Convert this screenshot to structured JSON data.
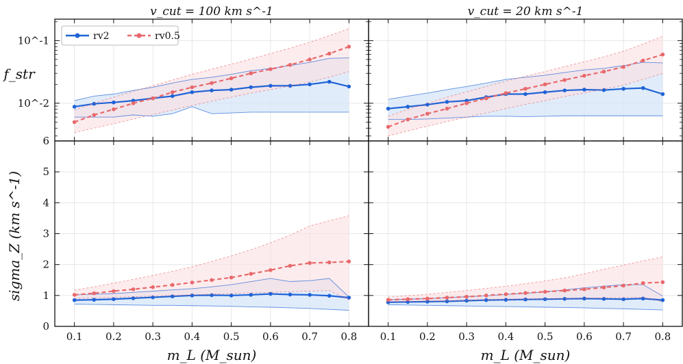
{
  "figure": {
    "panel_titles": [
      "v_cut = 100 km s^-1",
      "v_cut = 20 km s^-1"
    ],
    "xlabel": "m_L (M_sun)",
    "ylabel_top": "f_str",
    "ylabel_bottom": "sigma_Z (km s^-1)"
  },
  "colors": {
    "rv2": "#1f63d6",
    "rv0.5": "#e8686b",
    "rv2_band": "#d6e6f8",
    "rv05_band": "#fbe0e1"
  },
  "chart_data": [
    {
      "type": "line",
      "title": "v_cut = 100 km s^-1",
      "ylabel": "f_str",
      "yscale": "log",
      "ylim": [
        0.0025,
        0.22
      ],
      "xlim": [
        0.05,
        0.85
      ],
      "x": [
        0.1,
        0.15,
        0.2,
        0.25,
        0.3,
        0.35,
        0.4,
        0.45,
        0.5,
        0.55,
        0.6,
        0.65,
        0.7,
        0.75,
        0.8
      ],
      "series": [
        {
          "name": "rv2",
          "median": [
            0.0088,
            0.0098,
            0.0103,
            0.011,
            0.012,
            0.013,
            0.015,
            0.016,
            0.0165,
            0.018,
            0.019,
            0.019,
            0.02,
            0.022,
            0.0185
          ],
          "p16": [
            0.006,
            0.006,
            0.006,
            0.0065,
            0.0062,
            0.0068,
            0.0088,
            0.0068,
            0.007,
            0.0072,
            0.0072,
            0.0072,
            0.0072,
            0.0072,
            0.0072
          ],
          "p84": [
            0.011,
            0.013,
            0.014,
            0.016,
            0.018,
            0.021,
            0.024,
            0.026,
            0.029,
            0.033,
            0.036,
            0.04,
            0.045,
            0.052,
            0.053
          ]
        },
        {
          "name": "rv0.5",
          "median": [
            0.005,
            0.0065,
            0.008,
            0.01,
            0.012,
            0.015,
            0.018,
            0.021,
            0.025,
            0.03,
            0.035,
            0.041,
            0.05,
            0.062,
            0.08
          ],
          "p16": [
            0.0034,
            0.004,
            0.0047,
            0.0056,
            0.0066,
            0.0078,
            0.0092,
            0.0108,
            0.0125,
            0.0145,
            0.0165,
            0.0188,
            0.022,
            0.026,
            0.032
          ],
          "p84": [
            0.0078,
            0.01,
            0.0125,
            0.0155,
            0.019,
            0.0235,
            0.029,
            0.035,
            0.042,
            0.051,
            0.062,
            0.076,
            0.094,
            0.12,
            0.155
          ]
        }
      ]
    },
    {
      "type": "line",
      "title": "v_cut = 20 km s^-1",
      "ylabel": "f_str",
      "yscale": "log",
      "ylim": [
        0.0025,
        0.22
      ],
      "xlim": [
        0.05,
        0.85
      ],
      "x": [
        0.1,
        0.15,
        0.2,
        0.25,
        0.3,
        0.35,
        0.4,
        0.45,
        0.5,
        0.55,
        0.6,
        0.65,
        0.7,
        0.75,
        0.8
      ],
      "series": [
        {
          "name": "rv2",
          "median": [
            0.0082,
            0.0088,
            0.0095,
            0.0105,
            0.011,
            0.0125,
            0.014,
            0.014,
            0.015,
            0.016,
            0.0165,
            0.0162,
            0.017,
            0.0175,
            0.014
          ],
          "p16": [
            0.0055,
            0.0055,
            0.0056,
            0.0058,
            0.006,
            0.0062,
            0.0062,
            0.0061,
            0.0062,
            0.0063,
            0.0063,
            0.0063,
            0.0063,
            0.0063,
            0.0063
          ],
          "p84": [
            0.0115,
            0.013,
            0.0145,
            0.0165,
            0.0185,
            0.021,
            0.024,
            0.026,
            0.028,
            0.031,
            0.034,
            0.036,
            0.04,
            0.045,
            0.044
          ]
        },
        {
          "name": "rv0.5",
          "median": [
            0.0042,
            0.0055,
            0.0068,
            0.0082,
            0.01,
            0.012,
            0.0145,
            0.017,
            0.02,
            0.0235,
            0.0275,
            0.032,
            0.038,
            0.048,
            0.06
          ],
          "p16": [
            0.003,
            0.0036,
            0.0043,
            0.0051,
            0.006,
            0.007,
            0.0082,
            0.0096,
            0.011,
            0.0128,
            0.0146,
            0.0168,
            0.0195,
            0.024,
            0.03
          ],
          "p84": [
            0.0062,
            0.008,
            0.01,
            0.0125,
            0.0152,
            0.0185,
            0.0225,
            0.027,
            0.032,
            0.0385,
            0.046,
            0.055,
            0.068,
            0.088,
            0.118
          ]
        }
      ]
    },
    {
      "type": "line",
      "title": "",
      "ylabel": "sigma_Z (km s^-1)",
      "yscale": "linear",
      "ylim": [
        0,
        6
      ],
      "xlim": [
        0.05,
        0.85
      ],
      "x": [
        0.1,
        0.15,
        0.2,
        0.25,
        0.3,
        0.35,
        0.4,
        0.45,
        0.5,
        0.55,
        0.6,
        0.65,
        0.7,
        0.75,
        0.8
      ],
      "series": [
        {
          "name": "rv2",
          "median": [
            0.85,
            0.86,
            0.88,
            0.91,
            0.94,
            0.97,
            1.0,
            1.01,
            1.0,
            1.02,
            1.05,
            1.03,
            1.02,
            0.99,
            0.93
          ],
          "p16": [
            0.72,
            0.71,
            0.7,
            0.69,
            0.68,
            0.68,
            0.67,
            0.66,
            0.65,
            0.63,
            0.62,
            0.6,
            0.58,
            0.55,
            0.52
          ],
          "p84": [
            1.02,
            1.04,
            1.06,
            1.1,
            1.14,
            1.18,
            1.22,
            1.28,
            1.35,
            1.45,
            1.55,
            1.45,
            1.48,
            1.55,
            0.95
          ]
        },
        {
          "name": "rv0.5",
          "median": [
            1.02,
            1.07,
            1.14,
            1.2,
            1.27,
            1.34,
            1.42,
            1.5,
            1.58,
            1.7,
            1.82,
            1.96,
            2.05,
            2.07,
            2.1
          ],
          "p16": [
            0.9,
            0.92,
            0.94,
            0.96,
            0.98,
            1.0,
            1.02,
            1.04,
            1.06,
            1.08,
            1.1,
            1.12,
            1.14,
            1.16,
            0.86
          ],
          "p84": [
            1.17,
            1.28,
            1.4,
            1.52,
            1.65,
            1.78,
            1.93,
            2.1,
            2.28,
            2.48,
            2.7,
            2.95,
            3.25,
            3.42,
            3.58
          ]
        }
      ]
    },
    {
      "type": "line",
      "title": "",
      "ylabel": "sigma_Z (km s^-1)",
      "yscale": "linear",
      "ylim": [
        0,
        6
      ],
      "xlim": [
        0.05,
        0.85
      ],
      "x": [
        0.1,
        0.15,
        0.2,
        0.25,
        0.3,
        0.35,
        0.4,
        0.45,
        0.5,
        0.55,
        0.6,
        0.65,
        0.7,
        0.75,
        0.8
      ],
      "series": [
        {
          "name": "rv2",
          "median": [
            0.78,
            0.79,
            0.8,
            0.81,
            0.83,
            0.85,
            0.86,
            0.87,
            0.88,
            0.89,
            0.9,
            0.89,
            0.88,
            0.9,
            0.85
          ],
          "p16": [
            0.7,
            0.69,
            0.68,
            0.67,
            0.66,
            0.65,
            0.64,
            0.63,
            0.62,
            0.61,
            0.6,
            0.58,
            0.57,
            0.55,
            0.53
          ],
          "p84": [
            0.86,
            0.88,
            0.9,
            0.93,
            0.96,
            0.99,
            1.03,
            1.07,
            1.12,
            1.18,
            1.25,
            1.3,
            1.35,
            1.35,
            0.98
          ]
        },
        {
          "name": "rv0.5",
          "median": [
            0.86,
            0.88,
            0.9,
            0.93,
            0.96,
            1.0,
            1.04,
            1.08,
            1.12,
            1.16,
            1.2,
            1.26,
            1.32,
            1.4,
            1.43
          ],
          "p16": [
            0.8,
            0.81,
            0.82,
            0.83,
            0.84,
            0.86,
            0.87,
            0.88,
            0.89,
            0.9,
            0.91,
            0.92,
            0.93,
            0.94,
            0.8
          ],
          "p84": [
            0.95,
            0.99,
            1.04,
            1.1,
            1.16,
            1.23,
            1.3,
            1.38,
            1.47,
            1.57,
            1.7,
            1.85,
            1.98,
            2.12,
            2.25
          ]
        }
      ]
    }
  ],
  "axes": {
    "x_ticks": [
      0.1,
      0.2,
      0.3,
      0.4,
      0.5,
      0.6,
      0.7,
      0.8
    ],
    "x_tick_labels": [
      "0.1",
      "0.2",
      "0.3",
      "0.4",
      "0.5",
      "0.6",
      "0.7",
      "0.8"
    ],
    "y_top_tick_labels": [
      "10^-2",
      "10^-1"
    ],
    "y_bottom_ticks": [
      0,
      1,
      2,
      3,
      4,
      5,
      6
    ],
    "y_bottom_tick_labels": [
      "0",
      "1",
      "2",
      "3",
      "4",
      "5",
      "6"
    ]
  },
  "legend": {
    "items": [
      "rv2",
      "rv0.5"
    ],
    "placement": "top-left"
  }
}
